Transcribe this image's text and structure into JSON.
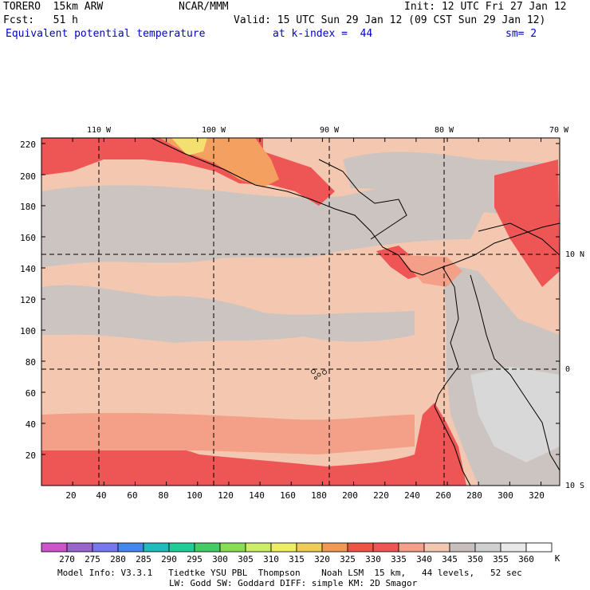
{
  "header": {
    "model": "TORERO  15km ARW",
    "org": "NCAR/MMM",
    "init": "Init: 12 UTC Fri 27 Jan 12",
    "fcst": "Fcst:   51 h",
    "valid": "Valid: 15 UTC Sun 29 Jan 12 (09 CST Sun 29 Jan 12)",
    "field": "Equivalent potential temperature",
    "level": "at k-index =  44",
    "smooth": "sm= 2"
  },
  "top_longitudes": [
    "110 W",
    "100 W",
    "90 W",
    "80 W",
    "70 W"
  ],
  "right_latitudes": [
    "10 N",
    "0",
    "10 S"
  ],
  "y_ticks": [
    "220",
    "200",
    "180",
    "160",
    "140",
    "120",
    "100",
    "80",
    "60",
    "40",
    "20"
  ],
  "x_ticks": [
    "20",
    "40",
    "60",
    "80",
    "100",
    "120",
    "140",
    "160",
    "180",
    "200",
    "220",
    "240",
    "260",
    "280",
    "300",
    "320"
  ],
  "colorbar": {
    "labels": [
      "270",
      "275",
      "280",
      "285",
      "290",
      "295",
      "300",
      "305",
      "310",
      "315",
      "320",
      "325",
      "330",
      "335",
      "340",
      "345",
      "350",
      "355",
      "360"
    ],
    "unit": "K",
    "colors": [
      "#cc55cc",
      "#9966cc",
      "#7777ee",
      "#4488ee",
      "#22bbbb",
      "#22cc99",
      "#44cc66",
      "#88dd55",
      "#ccee66",
      "#eeee66",
      "#eecc55",
      "#ee9955",
      "#ee5544",
      "#ee5555",
      "#f4a088",
      "#f4c8b0",
      "#c8c0bc",
      "#d0d0d0",
      "#e8e8e8",
      "#ffffff"
    ]
  },
  "footer": {
    "line1": "Model Info: V3.3.1   Tiedtke YSU PBL  Thompson    Noah LSM  15 km,   44 levels,   52 sec",
    "line2": "LW: Godd SW: Goddard DIFF: simple KM: 2D Smagor"
  },
  "map_colors": {
    "base": "#f4c8b0",
    "gray": "#ccc4c0",
    "light_gray": "#d8d8d8",
    "red": "#ee5555",
    "salmon": "#f4a088",
    "orange": "#f4a060",
    "yellow": "#f4e070"
  }
}
